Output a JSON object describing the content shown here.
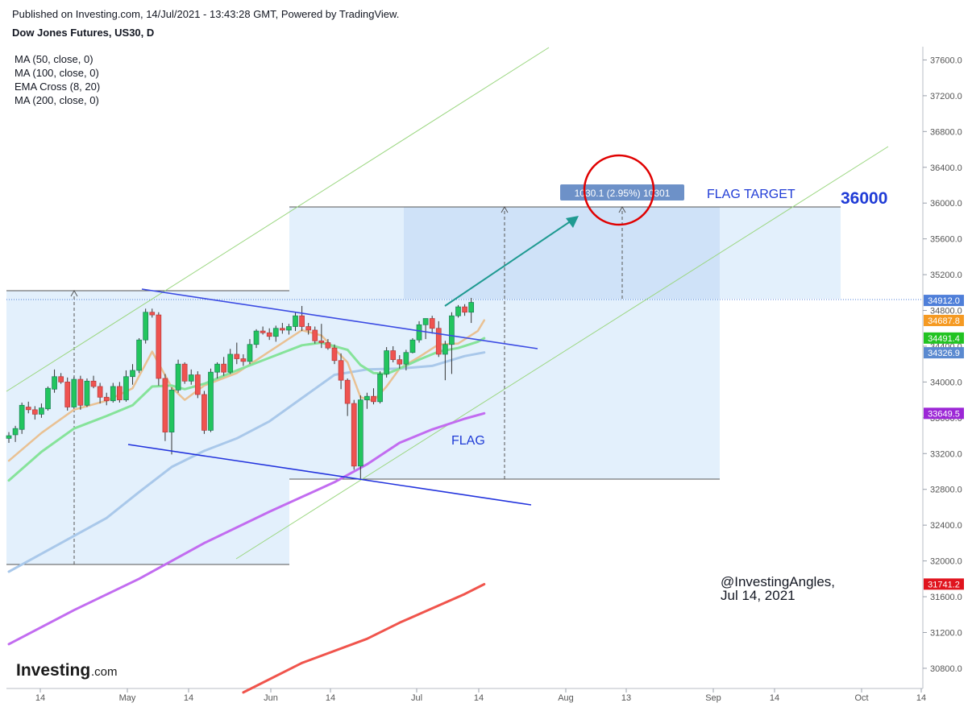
{
  "header": {
    "published": "Published on Investing.com, 14/Jul/2021 - 13:43:28 GMT, Powered by TradingView.",
    "symbol": "Dow Jones Futures, US30, D"
  },
  "indicators": [
    "MA (50, close, 0)",
    "MA (100, close, 0)",
    "EMA Cross (8, 20)",
    "MA (200, close, 0)"
  ],
  "annotations": {
    "flag_target": "FLAG TARGET",
    "target_value": "36000",
    "flag": "FLAG",
    "measure": "1030.1 (2.95%) 10301",
    "watermark_line1": "@InvestingAngles,",
    "watermark_line2": "Jul 14, 2021"
  },
  "logo": {
    "text": "Investing",
    "suffix": ".com"
  },
  "colors": {
    "up": "#26a69a",
    "up_fill": "#22c55e",
    "down": "#ef5350",
    "ma50": "#a9c8ea",
    "ma100": "#c26cf0",
    "ema8": "#e9c193",
    "ema20": "#86e39a",
    "ma200": "#f0544c",
    "flagline": "#3b4be3",
    "channel": "#9ad67f",
    "target_text": "#1f3bd6",
    "measure_bg": "#6d91c8"
  },
  "chart_data": {
    "type": "candlestick",
    "title": "Dow Jones Futures, US30, D",
    "y_axis": {
      "ticks": [
        37600,
        37200,
        36800,
        36400,
        36000,
        35600,
        35200,
        34800,
        34400,
        34000,
        33600,
        33200,
        32800,
        32400,
        32000,
        31600,
        31200,
        30800
      ],
      "range": [
        30550,
        37750
      ],
      "position": "right"
    },
    "x_axis": {
      "ticks": [
        "14",
        "May",
        "14",
        "Jun",
        "14",
        "Jul",
        "14",
        "Aug",
        "13",
        "Sep",
        "14",
        "Oct",
        "14"
      ]
    },
    "price_labels": [
      {
        "value": 34912.0,
        "label": "34912.0",
        "color": "#4f7fd9"
      },
      {
        "value": 34687.8,
        "label": "34687.8",
        "color": "#f59a23"
      },
      {
        "value": 34491.4,
        "label": "34491.4",
        "color": "#22c322"
      },
      {
        "value": 34326.9,
        "label": "34326.9",
        "color": "#5b8ad0"
      },
      {
        "value": 33649.5,
        "label": "33649.5",
        "color": "#9c27d6"
      },
      {
        "value": 31741.2,
        "label": "31741.2",
        "color": "#e0141e"
      }
    ],
    "candles": [
      [
        33370,
        33440,
        33320,
        33400
      ],
      [
        33410,
        33510,
        33330,
        33480
      ],
      [
        33470,
        33770,
        33420,
        33740
      ],
      [
        33720,
        33780,
        33650,
        33690
      ],
      [
        33690,
        33730,
        33580,
        33640
      ],
      [
        33640,
        33760,
        33600,
        33710
      ],
      [
        33700,
        33950,
        33680,
        33930
      ],
      [
        33920,
        34140,
        33880,
        34060
      ],
      [
        34060,
        34100,
        33980,
        34000
      ],
      [
        34000,
        34050,
        33680,
        33720
      ],
      [
        33720,
        34060,
        33700,
        34030
      ],
      [
        34030,
        34070,
        33690,
        33740
      ],
      [
        33740,
        34040,
        33720,
        34010
      ],
      [
        34010,
        34070,
        33930,
        33950
      ],
      [
        33950,
        33990,
        33760,
        33830
      ],
      [
        33830,
        33880,
        33740,
        33790
      ],
      [
        33790,
        33990,
        33770,
        33950
      ],
      [
        33950,
        34000,
        33770,
        33800
      ],
      [
        33800,
        34130,
        33780,
        34060
      ],
      [
        34060,
        34200,
        33970,
        34130
      ],
      [
        34130,
        34490,
        34100,
        34470
      ],
      [
        34470,
        34820,
        34430,
        34780
      ],
      [
        34780,
        34820,
        34720,
        34750
      ],
      [
        34750,
        34780,
        33960,
        34040
      ],
      [
        34040,
        34090,
        33340,
        33440
      ],
      [
        33440,
        33940,
        33190,
        33910
      ],
      [
        33910,
        34250,
        33880,
        34200
      ],
      [
        34200,
        34220,
        33980,
        34010
      ],
      [
        34010,
        34140,
        33970,
        34080
      ],
      [
        34080,
        34120,
        33820,
        33860
      ],
      [
        33860,
        33900,
        33420,
        33460
      ],
      [
        33460,
        34150,
        33440,
        34110
      ],
      [
        34110,
        34220,
        34040,
        34200
      ],
      [
        34200,
        34280,
        34070,
        34110
      ],
      [
        34110,
        34370,
        34090,
        34310
      ],
      [
        34310,
        34440,
        34200,
        34260
      ],
      [
        34260,
        34310,
        34180,
        34230
      ],
      [
        34230,
        34480,
        34200,
        34420
      ],
      [
        34420,
        34590,
        34380,
        34570
      ],
      [
        34570,
        34620,
        34530,
        34550
      ],
      [
        34550,
        34600,
        34470,
        34510
      ],
      [
        34510,
        34630,
        34450,
        34600
      ],
      [
        34600,
        34660,
        34540,
        34580
      ],
      [
        34580,
        34650,
        34530,
        34620
      ],
      [
        34620,
        34780,
        34570,
        34740
      ],
      [
        34740,
        34850,
        34570,
        34620
      ],
      [
        34620,
        34660,
        34530,
        34580
      ],
      [
        34580,
        34620,
        34430,
        34460
      ],
      [
        34460,
        34650,
        34380,
        34440
      ],
      [
        34440,
        34480,
        34360,
        34380
      ],
      [
        34380,
        34420,
        34200,
        34240
      ],
      [
        34240,
        34320,
        33920,
        34020
      ],
      [
        34020,
        34040,
        33620,
        33760
      ],
      [
        33760,
        33800,
        33020,
        33060
      ],
      [
        33060,
        33850,
        32920,
        33800
      ],
      [
        33800,
        33880,
        33700,
        33840
      ],
      [
        33840,
        33930,
        33750,
        33780
      ],
      [
        33780,
        34120,
        33760,
        34090
      ],
      [
        34090,
        34390,
        34050,
        34350
      ],
      [
        34350,
        34400,
        34220,
        34250
      ],
      [
        34250,
        34300,
        34150,
        34200
      ],
      [
        34200,
        34360,
        34130,
        34330
      ],
      [
        34330,
        34490,
        34320,
        34470
      ],
      [
        34470,
        34680,
        34440,
        34640
      ],
      [
        34640,
        34710,
        34480,
        34710
      ],
      [
        34710,
        34740,
        34540,
        34600
      ],
      [
        34600,
        34680,
        34280,
        34310
      ],
      [
        34310,
        34460,
        34020,
        34420
      ],
      [
        34420,
        34780,
        34090,
        34740
      ],
      [
        34740,
        34860,
        34720,
        34840
      ],
      [
        34840,
        34870,
        34740,
        34780
      ],
      [
        34780,
        34940,
        34660,
        34890
      ]
    ],
    "series": [
      {
        "name": "MA (50, close, 0)",
        "values": [
          [
            0,
            31880
          ],
          [
            8,
            32200
          ],
          [
            15,
            32480
          ],
          [
            20,
            32770
          ],
          [
            25,
            33050
          ],
          [
            30,
            33230
          ],
          [
            35,
            33370
          ],
          [
            40,
            33560
          ],
          [
            45,
            33820
          ],
          [
            50,
            34080
          ],
          [
            55,
            34140
          ],
          [
            60,
            34150
          ],
          [
            65,
            34180
          ],
          [
            70,
            34290
          ],
          [
            73,
            34330
          ]
        ]
      },
      {
        "name": "MA (100, close, 0)",
        "values": [
          [
            0,
            31070
          ],
          [
            10,
            31450
          ],
          [
            20,
            31800
          ],
          [
            30,
            32200
          ],
          [
            40,
            32550
          ],
          [
            50,
            32880
          ],
          [
            55,
            33080
          ],
          [
            60,
            33320
          ],
          [
            65,
            33470
          ],
          [
            70,
            33590
          ],
          [
            73,
            33650
          ]
        ]
      },
      {
        "name": "EMA Cross (8, 20) fast",
        "values": [
          [
            0,
            33120
          ],
          [
            5,
            33430
          ],
          [
            10,
            33690
          ],
          [
            15,
            33790
          ],
          [
            19,
            33930
          ],
          [
            22,
            34340
          ],
          [
            25,
            33940
          ],
          [
            27,
            33800
          ],
          [
            30,
            33960
          ],
          [
            35,
            34100
          ],
          [
            40,
            34340
          ],
          [
            45,
            34580
          ],
          [
            48,
            34520
          ],
          [
            52,
            34220
          ],
          [
            54,
            33830
          ],
          [
            56,
            33790
          ],
          [
            58,
            33950
          ],
          [
            60,
            34150
          ],
          [
            63,
            34280
          ],
          [
            66,
            34420
          ],
          [
            69,
            34430
          ],
          [
            72,
            34570
          ],
          [
            73,
            34690
          ]
        ]
      },
      {
        "name": "EMA Cross (8, 20) slow",
        "values": [
          [
            0,
            32900
          ],
          [
            5,
            33220
          ],
          [
            10,
            33480
          ],
          [
            15,
            33620
          ],
          [
            19,
            33740
          ],
          [
            22,
            33950
          ],
          [
            25,
            33960
          ],
          [
            27,
            33920
          ],
          [
            30,
            33980
          ],
          [
            35,
            34130
          ],
          [
            40,
            34270
          ],
          [
            45,
            34410
          ],
          [
            48,
            34440
          ],
          [
            52,
            34360
          ],
          [
            54,
            34190
          ],
          [
            56,
            34100
          ],
          [
            58,
            34090
          ],
          [
            60,
            34150
          ],
          [
            63,
            34250
          ],
          [
            66,
            34340
          ],
          [
            69,
            34380
          ],
          [
            72,
            34450
          ],
          [
            73,
            34490
          ]
        ]
      },
      {
        "name": "MA (200, close, 0)",
        "values": [
          [
            36,
            30530
          ],
          [
            45,
            30860
          ],
          [
            55,
            31130
          ],
          [
            60,
            31310
          ],
          [
            65,
            31470
          ],
          [
            70,
            31630
          ],
          [
            73,
            31740
          ]
        ]
      }
    ]
  }
}
